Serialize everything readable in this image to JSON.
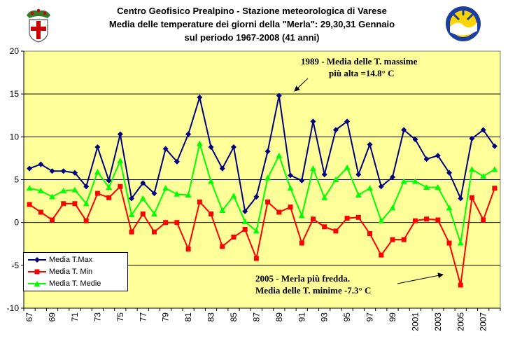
{
  "title": {
    "line1": "Centro Geofisico Prealpino - Stazione meteorologica di Varese",
    "line2": "Media delle temperature dei giorni della \"Merla\": 29,30,31 Gennaio",
    "line3": "sul periodo 1967-2008 (41 anni)"
  },
  "annotations": {
    "max_line1": "1989 - Media delle T. massime",
    "max_line2": "più alta =14.8° C",
    "min_line1": "2005 - Merla più fredda.",
    "min_line2": "Media delle T. minime -7.3° C"
  },
  "chart_data": {
    "type": "line",
    "x": [
      1967,
      1968,
      1969,
      1970,
      1971,
      1972,
      1973,
      1974,
      1975,
      1976,
      1977,
      1978,
      1979,
      1980,
      1981,
      1982,
      1983,
      1984,
      1985,
      1986,
      1987,
      1988,
      1989,
      1990,
      1991,
      1992,
      1993,
      1994,
      1995,
      1996,
      1997,
      1998,
      1999,
      2000,
      2001,
      2002,
      2003,
      2004,
      2005,
      2006,
      2007,
      2008
    ],
    "x_tick_labels": [
      "67",
      "69",
      "71",
      "73",
      "75",
      "77",
      "79",
      "81",
      "83",
      "85",
      "87",
      "89",
      "91",
      "93",
      "95",
      "97",
      "99",
      "2001",
      "2003",
      "2005",
      "2007"
    ],
    "ylim": [
      -10,
      20
    ],
    "y_ticks": [
      -10,
      -5,
      0,
      5,
      10,
      15,
      20
    ],
    "grid": true,
    "legend_position": "bottom-left",
    "series": [
      {
        "name": "Media T.Max",
        "color": "#000080",
        "marker": "diamond",
        "values": [
          6.3,
          6.8,
          6.0,
          6.0,
          5.8,
          4.2,
          8.8,
          4.9,
          10.3,
          2.8,
          4.6,
          3.4,
          8.6,
          7.1,
          10.3,
          14.6,
          8.8,
          6.3,
          8.8,
          1.3,
          3.0,
          8.3,
          14.8,
          5.5,
          4.9,
          11.8,
          5.6,
          10.8,
          11.8,
          5.6,
          9.1,
          4.2,
          5.3,
          10.8,
          9.7,
          7.4,
          7.8,
          5.8,
          2.8,
          9.8,
          10.8,
          8.9
        ]
      },
      {
        "name": "Media T. Min",
        "color": "#ff0000",
        "marker": "square",
        "values": [
          2.1,
          1.2,
          0.3,
          2.2,
          2.2,
          0.2,
          3.4,
          2.9,
          4.2,
          -1.1,
          1.0,
          -1.1,
          0.0,
          0.0,
          -3.1,
          2.4,
          1.0,
          -2.8,
          -1.7,
          -0.8,
          -4.2,
          2.4,
          1.2,
          1.8,
          -2.4,
          0.4,
          -0.5,
          -1.0,
          0.5,
          0.6,
          -1.3,
          -3.8,
          -2.0,
          -2.0,
          0.2,
          0.4,
          0.3,
          -2.4,
          -7.3,
          2.9,
          0.3,
          4.0
        ]
      },
      {
        "name": "Media T. Medie",
        "color": "#00ff00",
        "marker": "triangle",
        "values": [
          4.0,
          3.7,
          3.0,
          3.7,
          3.8,
          2.2,
          5.9,
          4.1,
          7.2,
          0.9,
          2.8,
          1.0,
          4.0,
          3.3,
          3.2,
          9.2,
          4.8,
          1.4,
          3.1,
          0.1,
          -1.0,
          5.2,
          7.8,
          4.0,
          0.8,
          6.3,
          2.9,
          5.0,
          6.4,
          3.2,
          4.0,
          0.2,
          1.7,
          4.8,
          4.8,
          4.1,
          4.1,
          1.7,
          -2.4,
          6.2,
          5.4,
          6.2
        ]
      }
    ]
  }
}
